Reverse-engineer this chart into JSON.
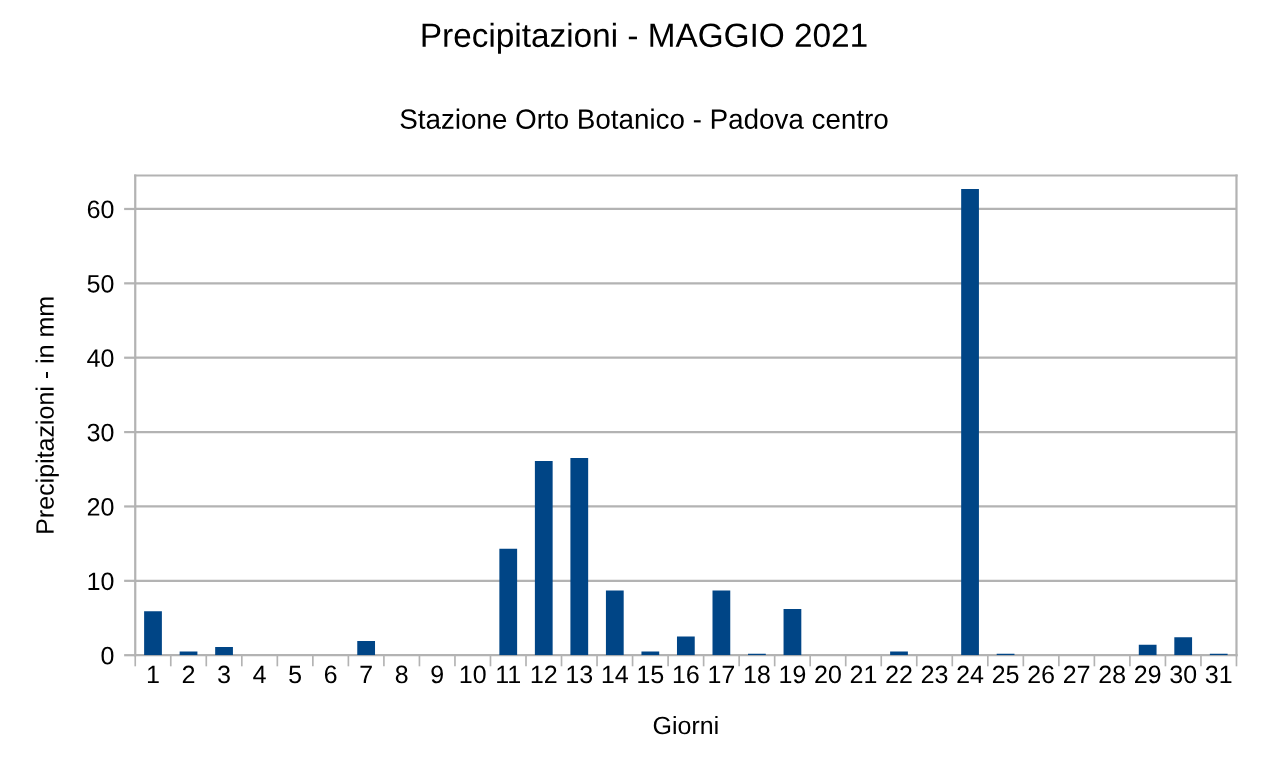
{
  "chart_data": {
    "type": "bar",
    "title": "Precipitazioni - MAGGIO 2021",
    "subtitle": "Stazione Orto Botanico - Padova centro",
    "xlabel": "Giorni",
    "ylabel": "Precipitazioni - in mm",
    "categories": [
      "1",
      "2",
      "3",
      "4",
      "5",
      "6",
      "7",
      "8",
      "9",
      "10",
      "11",
      "12",
      "13",
      "14",
      "15",
      "16",
      "17",
      "18",
      "19",
      "20",
      "21",
      "22",
      "23",
      "24",
      "25",
      "26",
      "27",
      "28",
      "29",
      "30",
      "31"
    ],
    "series": [
      {
        "color": "#004586",
        "values": [
          5.9,
          0.5,
          1.1,
          0,
          0,
          0,
          1.9,
          0,
          0,
          0,
          14.3,
          26.1,
          26.5,
          8.7,
          0.5,
          2.5,
          8.7,
          0.2,
          6.2,
          0,
          0,
          0.5,
          0,
          62.7,
          0.2,
          0,
          0,
          0,
          1.4,
          2.4,
          0.2
        ]
      }
    ],
    "ylim": [
      0,
      64.5
    ],
    "yticks": [
      0,
      10,
      20,
      30,
      40,
      50,
      60
    ],
    "grid": "y",
    "legend": false
  }
}
